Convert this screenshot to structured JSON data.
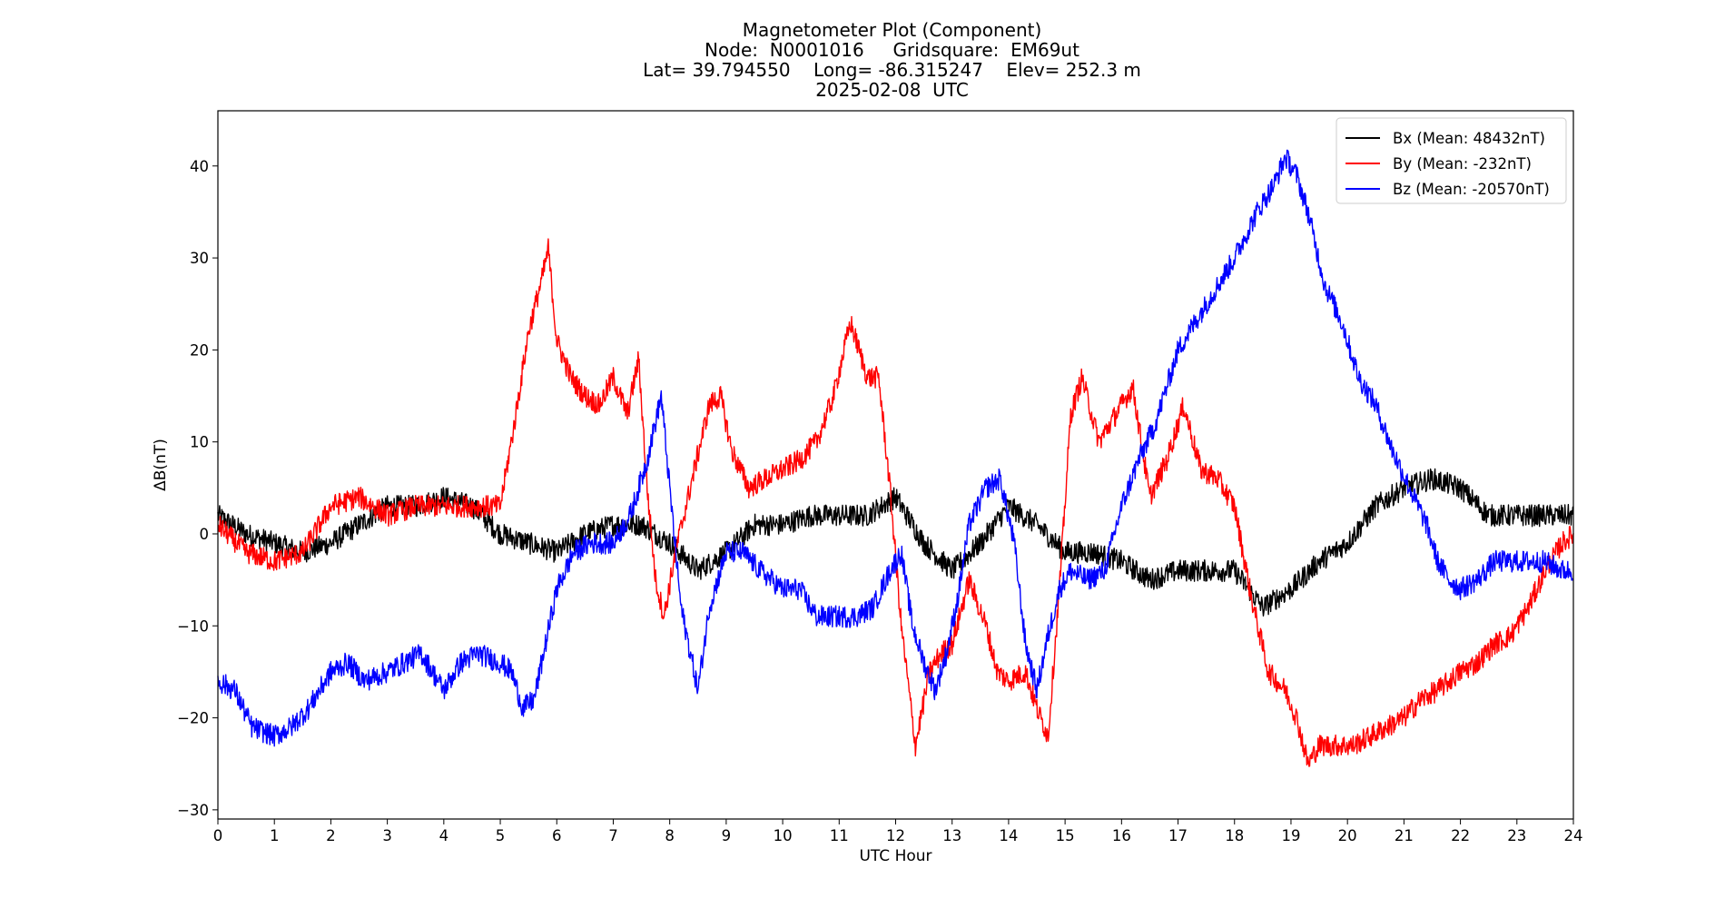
{
  "chart_data": {
    "type": "line",
    "title_lines": [
      "Magnetometer Plot (Component)",
      "Node:  N0001016     Gridsquare:  EM69ut",
      "Lat= 39.794550    Long= -86.315247    Elev= 252.3 m",
      "2025-02-08  UTC"
    ],
    "xlabel": "UTC Hour",
    "ylabel": "ΔB(nT)",
    "xlim": [
      0,
      24
    ],
    "ylim": [
      -31,
      46
    ],
    "xticks": [
      0,
      1,
      2,
      3,
      4,
      5,
      6,
      7,
      8,
      9,
      10,
      11,
      12,
      13,
      14,
      15,
      16,
      17,
      18,
      19,
      20,
      21,
      22,
      23,
      24
    ],
    "yticks": [
      -30,
      -20,
      -10,
      0,
      10,
      20,
      30,
      40
    ],
    "ytick_labels": [
      "−30",
      "−20",
      "−10",
      "0",
      "10",
      "20",
      "30",
      "40"
    ],
    "grid": false,
    "legend_position": "top-right",
    "series": [
      {
        "name": "Bx (Mean: 48432nT)",
        "color": "#000000",
        "x": [
          0,
          0.5,
          1,
          1.5,
          2,
          2.5,
          3,
          3.5,
          4,
          4.5,
          5,
          5.5,
          6,
          6.5,
          7,
          7.5,
          8,
          8.5,
          9,
          9.5,
          10,
          10.5,
          11,
          11.5,
          12,
          12.5,
          13,
          13.5,
          14,
          14.5,
          15,
          15.5,
          16,
          16.5,
          17,
          17.5,
          18,
          18.5,
          19,
          19.5,
          20,
          20.5,
          21,
          21.5,
          22,
          22.5,
          23,
          23.5,
          24
        ],
        "values": [
          2,
          0,
          -1,
          -2,
          -1,
          1,
          3,
          3,
          4,
          3,
          0,
          -1,
          -2,
          0,
          1,
          1,
          -1,
          -4,
          -2,
          1,
          1,
          2,
          2,
          2,
          4,
          -1,
          -4,
          -1,
          3,
          1,
          -2,
          -2,
          -3,
          -5,
          -4,
          -4,
          -4,
          -8,
          -6,
          -3,
          -1,
          3,
          5,
          6,
          5,
          2,
          2,
          2,
          2
        ]
      },
      {
        "name": "By (Mean: -232nT)",
        "color": "#ff0000",
        "x": [
          0,
          0.5,
          1,
          1.5,
          2,
          2.5,
          3,
          3.5,
          4,
          4.5,
          5,
          5.25,
          5.5,
          5.75,
          5.85,
          6,
          6.25,
          6.5,
          6.75,
          7,
          7.25,
          7.45,
          7.6,
          7.75,
          7.9,
          8.1,
          8.4,
          8.7,
          8.9,
          9.1,
          9.4,
          9.7,
          10,
          10.3,
          10.6,
          10.9,
          11.2,
          11.5,
          11.7,
          11.9,
          12.1,
          12.35,
          12.6,
          12.8,
          13,
          13.3,
          13.6,
          13.8,
          14.0,
          14.3,
          14.5,
          14.7,
          14.9,
          15.1,
          15.3,
          15.6,
          15.9,
          16.2,
          16.5,
          16.8,
          17.1,
          17.4,
          17.7,
          18.0,
          18.3,
          18.6,
          18.9,
          19.1,
          19.3,
          19.5,
          19.8,
          20.1,
          20.4,
          20.7,
          21.0,
          21.3,
          21.6,
          21.8,
          22.0,
          22.3,
          22.6,
          22.9,
          23.2,
          23.5,
          23.8,
          24
        ],
        "values": [
          1,
          -2,
          -3,
          -2,
          3,
          4,
          2,
          3,
          3,
          3,
          3,
          12,
          22,
          28,
          31,
          21,
          17,
          15,
          14,
          17,
          13,
          19,
          5,
          -5,
          -9,
          -2,
          6,
          14,
          15,
          9,
          5,
          6,
          7,
          8,
          10,
          15,
          23,
          17,
          17,
          5,
          -10,
          -23,
          -15,
          -13,
          -12,
          -5,
          -10,
          -15,
          -16,
          -15,
          -19,
          -22,
          -6,
          13,
          17,
          10,
          13,
          16,
          4,
          8,
          14,
          7,
          6,
          3,
          -7,
          -15,
          -17,
          -20,
          -25,
          -23,
          -23,
          -23,
          -22,
          -21,
          -20,
          -18,
          -17,
          -16,
          -15,
          -14,
          -12,
          -11,
          -8,
          -4,
          -1,
          0
        ]
      },
      {
        "name": "Bz (Mean: -20570nT)",
        "color": "#0000ff",
        "x": [
          0,
          0.3,
          0.6,
          1,
          1.3,
          1.6,
          2,
          2.3,
          2.6,
          3,
          3.3,
          3.6,
          4,
          4.3,
          4.6,
          5,
          5.2,
          5.4,
          5.6,
          5.8,
          6,
          6.3,
          6.6,
          7,
          7.3,
          7.6,
          7.85,
          8.0,
          8.2,
          8.5,
          8.7,
          9,
          9.3,
          9.6,
          10,
          10.3,
          10.6,
          11,
          11.3,
          11.6,
          11.9,
          12.1,
          12.3,
          12.5,
          12.7,
          12.9,
          13.1,
          13.3,
          13.6,
          13.85,
          14.1,
          14.3,
          14.5,
          14.7,
          14.9,
          15.1,
          15.4,
          15.7,
          16.0,
          16.3,
          16.6,
          17,
          17.5,
          18,
          18.4,
          18.7,
          18.9,
          19.1,
          19.3,
          19.6,
          19.9,
          20.2,
          20.5,
          20.8,
          21.1,
          21.4,
          21.6,
          21.8,
          22,
          22.3,
          22.6,
          22.9,
          23.2,
          23.5,
          23.8,
          24
        ],
        "values": [
          -16,
          -17,
          -21,
          -22,
          -21,
          -19,
          -15,
          -14,
          -16,
          -15,
          -14,
          -13,
          -17,
          -14,
          -13,
          -14,
          -15,
          -19,
          -18,
          -12,
          -6,
          -2,
          -1,
          -1,
          2,
          8,
          15,
          5,
          -8,
          -17,
          -8,
          -2,
          -2,
          -4,
          -6,
          -6,
          -9,
          -9,
          -9,
          -8,
          -4,
          -2,
          -10,
          -14,
          -17,
          -13,
          -7,
          1,
          5,
          6,
          -1,
          -12,
          -17,
          -11,
          -6,
          -4,
          -5,
          -4,
          3,
          8,
          12,
          20,
          25,
          30,
          35,
          38,
          41,
          39,
          35,
          27,
          23,
          17,
          14,
          9,
          5,
          1,
          -3,
          -5,
          -6,
          -5,
          -3,
          -3,
          -3,
          -3,
          -4,
          -4
        ]
      }
    ]
  }
}
